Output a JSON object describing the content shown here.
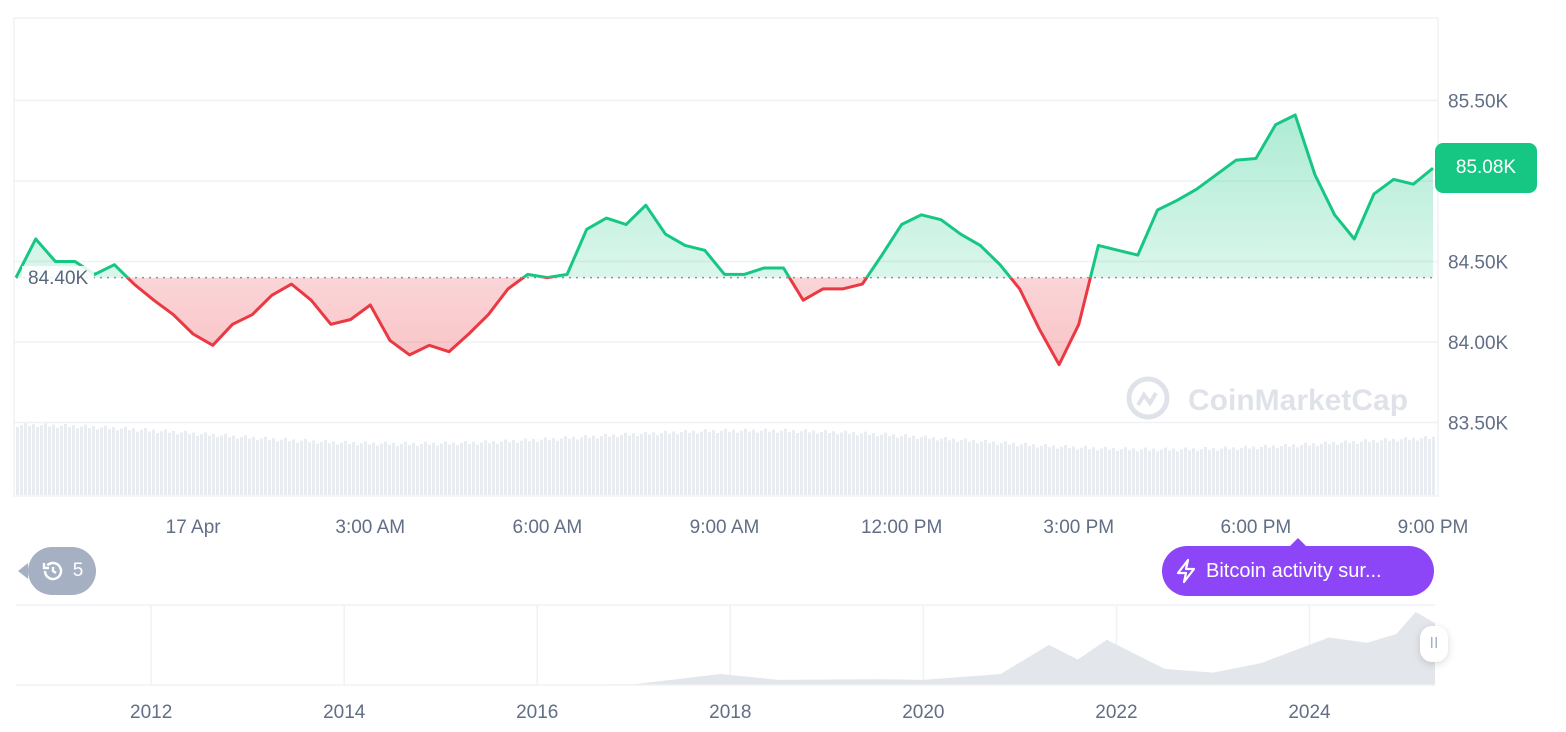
{
  "chart_data": {
    "type": "area",
    "title": "",
    "xlabel": "",
    "ylabel": "",
    "x_start": "16 Apr 21:00",
    "x_interval_minutes": 20,
    "x_tick_labels": [
      "17 Apr",
      "3:00 AM",
      "6:00 AM",
      "9:00 AM",
      "12:00 PM",
      "3:00 PM",
      "6:00 PM",
      "9:00 PM"
    ],
    "y_ticks": [
      83.5,
      84.0,
      84.5,
      85.0,
      85.5
    ],
    "y_tick_labels": [
      "83.50K",
      "84.00K",
      "84.50K",
      "",
      "85.50K"
    ],
    "ylim": [
      83.05,
      86.0
    ],
    "unit": "K",
    "baseline": 84.4,
    "baseline_label": "84.40K",
    "current_price": 85.08,
    "current_price_label": "85.08K",
    "grid": true,
    "values": [
      84.4,
      84.64,
      84.5,
      84.5,
      84.42,
      84.48,
      84.36,
      84.26,
      84.17,
      84.05,
      83.98,
      84.11,
      84.17,
      84.29,
      84.36,
      84.26,
      84.11,
      84.14,
      84.23,
      84.01,
      83.92,
      83.98,
      83.94,
      84.05,
      84.17,
      84.33,
      84.42,
      84.4,
      84.42,
      84.7,
      84.77,
      84.73,
      84.85,
      84.67,
      84.6,
      84.57,
      84.42,
      84.42,
      84.46,
      84.46,
      84.26,
      84.33,
      84.33,
      84.36,
      84.54,
      84.73,
      84.79,
      84.76,
      84.67,
      84.6,
      84.48,
      84.33,
      84.08,
      83.86,
      84.11,
      84.6,
      84.57,
      84.54,
      84.82,
      84.88,
      84.95,
      85.04,
      85.13,
      85.14,
      85.35,
      85.41,
      85.04,
      84.79,
      84.64,
      84.92,
      85.01,
      84.98,
      85.08
    ],
    "colors": {
      "up": "#16c784",
      "down": "#ea3943",
      "grid": "#eff2f5",
      "volume": "#e9ecf1",
      "navigator": "#e3e6eb"
    },
    "navigator": {
      "x_tick_labels": [
        "2012",
        "2014",
        "2016",
        "2018",
        "2020",
        "2022",
        "2024"
      ],
      "years": [
        2010.6,
        2013,
        2016,
        2017.0,
        2017.9,
        2018.5,
        2019.5,
        2020.0,
        2020.8,
        2021.3,
        2021.6,
        2021.9,
        2022.5,
        2023.0,
        2023.5,
        2024.2,
        2024.6,
        2024.9,
        2025.1,
        2025.3
      ],
      "values": [
        0,
        0.1,
        0.5,
        1,
        15,
        7,
        8,
        7,
        15,
        55,
        35,
        62,
        22,
        17,
        30,
        65,
        58,
        70,
        100,
        85
      ]
    }
  },
  "watermark": "CoinMarketCap",
  "history_button": {
    "icon": "history-icon",
    "count": "5"
  },
  "news": {
    "icon": "lightning-icon",
    "text": "Bitcoin activity sur..."
  },
  "navigator_handle": {
    "icon": "pause-icon",
    "glyph": "II"
  }
}
